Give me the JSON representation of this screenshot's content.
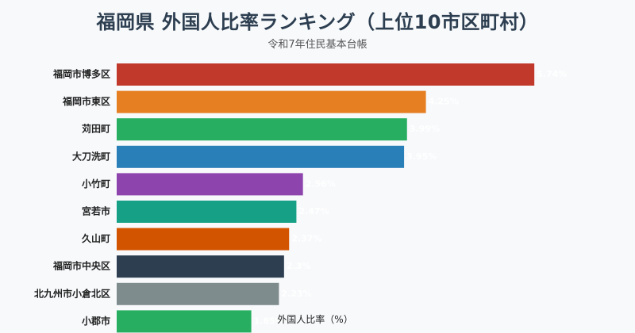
{
  "chart_title": "福岡県 外国人比率ランキング（上位10市区町村）",
  "chart_subtitle": "令和7年住民基本台帳",
  "chart_data": {
    "type": "bar",
    "orientation": "horizontal",
    "title": "福岡県 外国人比率ランキング（上位10市区町村）",
    "subtitle": "令和7年住民基本台帳",
    "xlabel": "外国人比率（%）",
    "ylabel": "",
    "categories": [
      "福岡市博多区",
      "福岡市東区",
      "苅田町",
      "大刀洗町",
      "小竹町",
      "宮若市",
      "久山町",
      "福岡市中央区",
      "北九州市小倉北区",
      "小郡市"
    ],
    "values": [
      5.74,
      4.25,
      3.99,
      3.95,
      2.56,
      2.47,
      2.37,
      2.3,
      2.23,
      1.85
    ],
    "value_labels": [
      "5.74%",
      "4.25%",
      "3.99%",
      "3.95%",
      "2.56%",
      "2.47%",
      "2.37%",
      "2.3%",
      "2.23%",
      "1.85%"
    ],
    "colors": [
      "#c0392b",
      "#e67e22",
      "#27ae60",
      "#2980b9",
      "#8e44ad",
      "#16a085",
      "#d35400",
      "#2c3e50",
      "#7f8c8d",
      "#27ae60"
    ],
    "xlim": [
      0,
      6.0
    ],
    "grid": false,
    "legend": "none"
  }
}
